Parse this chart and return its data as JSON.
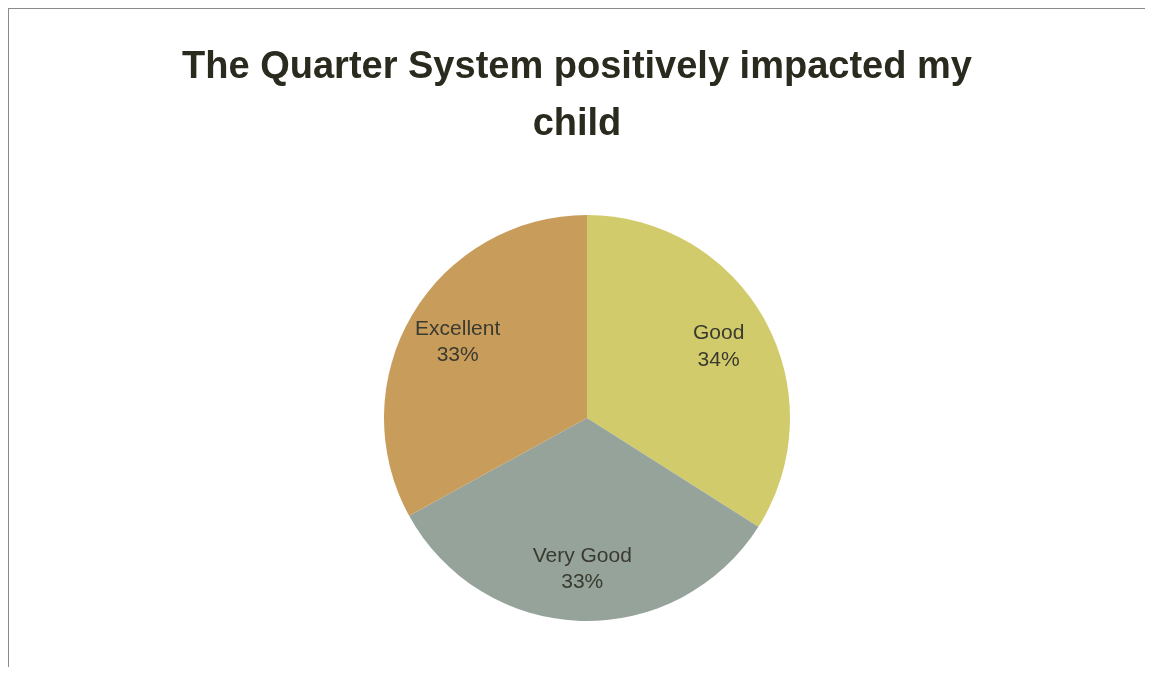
{
  "chart_data": {
    "type": "pie",
    "title": "The Quarter System positively impacted my child",
    "categories": [
      "Good",
      "Very Good",
      "Excellent"
    ],
    "values": [
      34,
      33,
      33
    ],
    "colors": [
      "#d2cb6c",
      "#95a39b",
      "#c89d5c"
    ],
    "value_labels": [
      "34%",
      "33%",
      "33%"
    ],
    "legend": false
  }
}
